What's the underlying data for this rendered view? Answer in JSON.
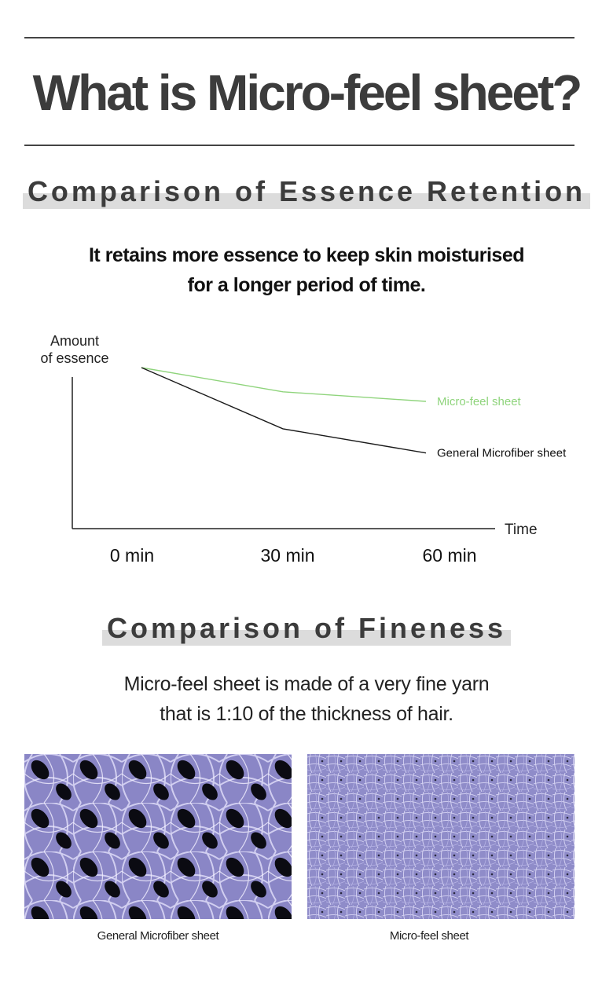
{
  "title": "What is Micro-feel sheet?",
  "retention": {
    "heading": "Comparison of Essence Retention",
    "description_line1": "It retains more essence to keep skin moisturised",
    "description_line2": "for a longer period of time."
  },
  "chart_data": {
    "type": "line",
    "ylabel_line1": "Amount",
    "ylabel_line2": "of essence",
    "xlabel": "Time",
    "categories": [
      "0 min",
      "30 min",
      "60 min"
    ],
    "ylim": [
      0,
      100
    ],
    "series": [
      {
        "name": "Micro-feel sheet",
        "values": [
          100,
          85,
          79
        ],
        "color": "#8fd47c"
      },
      {
        "name": "General Microfiber sheet",
        "values": [
          100,
          62,
          47
        ],
        "color": "#1a1a1a"
      }
    ]
  },
  "fineness": {
    "heading": "Comparison of Fineness",
    "description_line1": "Micro-feel sheet is made of a very fine yarn",
    "description_line2": "that is 1:10 of the thickness of hair."
  },
  "photos": [
    {
      "caption": "General Microfiber sheet"
    },
    {
      "caption": "Micro-feel sheet"
    }
  ]
}
